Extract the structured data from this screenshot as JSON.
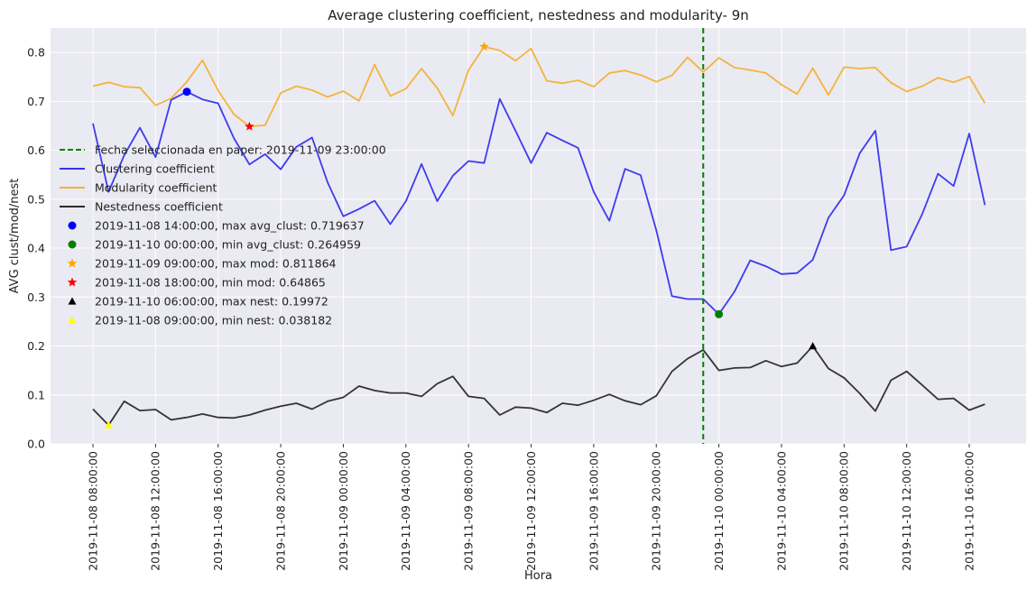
{
  "chart_data": {
    "type": "line",
    "title": "Average clustering coefficient, nestedness and modularity- 9n",
    "xlabel": "Hora",
    "ylabel": "AVG clust/mod/nest",
    "ylim": [
      0,
      0.85
    ],
    "yticks": [
      "0.0",
      "0.1",
      "0.2",
      "0.3",
      "0.4",
      "0.5",
      "0.6",
      "0.7",
      "0.8"
    ],
    "x_start": "2019-11-08 08:00:00",
    "x_step_hours": 1,
    "xticks": [
      "2019-11-08 08:00:00",
      "2019-11-08 12:00:00",
      "2019-11-08 16:00:00",
      "2019-11-08 20:00:00",
      "2019-11-09 00:00:00",
      "2019-11-09 04:00:00",
      "2019-11-09 08:00:00",
      "2019-11-09 12:00:00",
      "2019-11-09 16:00:00",
      "2019-11-09 20:00:00",
      "2019-11-10 00:00:00",
      "2019-11-10 04:00:00",
      "2019-11-10 08:00:00",
      "2019-11-10 12:00:00",
      "2019-11-10 16:00:00"
    ],
    "grid": true,
    "legend_position": "left",
    "vline": {
      "x": "2019-11-09 23:00:00",
      "label": "Fecha seleccionada en paper: 2019-11-09 23:00:00",
      "color": "#008000"
    },
    "series": [
      {
        "name": "Clustering coefficient",
        "color": "#3333ee",
        "values": [
          0.655,
          0.515,
          0.59,
          0.646,
          0.586,
          0.703,
          0.719637,
          0.704,
          0.696,
          0.625,
          0.571,
          0.592,
          0.561,
          0.607,
          0.626,
          0.534,
          0.465,
          0.48,
          0.497,
          0.449,
          0.496,
          0.572,
          0.496,
          0.548,
          0.578,
          0.574,
          0.705,
          0.64,
          0.574,
          0.636,
          0.62,
          0.605,
          0.515,
          0.456,
          0.562,
          0.549,
          0.437,
          0.302,
          0.296,
          0.296,
          0.264959,
          0.311,
          0.375,
          0.363,
          0.347,
          0.349,
          0.376,
          0.462,
          0.508,
          0.594,
          0.64,
          0.396,
          0.403,
          0.47,
          0.552,
          0.527,
          0.634,
          0.488
        ]
      },
      {
        "name": "Modularity coefficient",
        "color": "#f5b030",
        "values": [
          0.731,
          0.739,
          0.73,
          0.728,
          0.692,
          0.706,
          0.74,
          0.784,
          0.722,
          0.674,
          0.64865,
          0.651,
          0.717,
          0.731,
          0.723,
          0.709,
          0.721,
          0.701,
          0.775,
          0.711,
          0.726,
          0.767,
          0.727,
          0.671,
          0.764,
          0.811864,
          0.804,
          0.783,
          0.808,
          0.742,
          0.737,
          0.743,
          0.73,
          0.758,
          0.763,
          0.754,
          0.74,
          0.753,
          0.79,
          0.76,
          0.789,
          0.769,
          0.764,
          0.758,
          0.734,
          0.715,
          0.768,
          0.713,
          0.77,
          0.767,
          0.769,
          0.738,
          0.72,
          0.731,
          0.748,
          0.739,
          0.751,
          0.696
        ]
      },
      {
        "name": "Nestedness coefficient",
        "color": "#2a2a2a",
        "values": [
          0.071,
          0.038182,
          0.087,
          0.068,
          0.07,
          0.049,
          0.054,
          0.061,
          0.054,
          0.053,
          0.059,
          0.069,
          0.077,
          0.083,
          0.071,
          0.087,
          0.095,
          0.118,
          0.109,
          0.104,
          0.104,
          0.097,
          0.123,
          0.138,
          0.097,
          0.093,
          0.059,
          0.075,
          0.073,
          0.064,
          0.083,
          0.079,
          0.089,
          0.101,
          0.088,
          0.08,
          0.098,
          0.148,
          0.174,
          0.192,
          0.15,
          0.155,
          0.156,
          0.17,
          0.158,
          0.165,
          0.19972,
          0.154,
          0.135,
          0.103,
          0.067,
          0.13,
          0.148,
          0.12,
          0.091,
          0.093,
          0.069,
          0.081
        ]
      }
    ],
    "markers": [
      {
        "label": "2019-11-08 14:00:00, max avg_clust: 0.719637",
        "x": "2019-11-08 14:00:00",
        "y": 0.719637,
        "shape": "circle",
        "color": "#0000ff"
      },
      {
        "label": "2019-11-10 00:00:00, min avg_clust: 0.264959",
        "x": "2019-11-10 00:00:00",
        "y": 0.264959,
        "shape": "circle",
        "color": "#008000"
      },
      {
        "label": "2019-11-09 09:00:00, max mod: 0.811864",
        "x": "2019-11-09 09:00:00",
        "y": 0.811864,
        "shape": "star",
        "color": "#ffa500"
      },
      {
        "label": "2019-11-08 18:00:00, min mod: 0.64865",
        "x": "2019-11-08 18:00:00",
        "y": 0.64865,
        "shape": "star",
        "color": "#ff0000"
      },
      {
        "label": "2019-11-10 06:00:00, max nest: 0.19972",
        "x": "2019-11-10 06:00:00",
        "y": 0.19972,
        "shape": "triangle",
        "color": "#000000"
      },
      {
        "label": "2019-11-08 09:00:00, min nest: 0.038182",
        "x": "2019-11-08 09:00:00",
        "y": 0.038182,
        "shape": "triangle",
        "color": "#ffff00"
      }
    ]
  }
}
